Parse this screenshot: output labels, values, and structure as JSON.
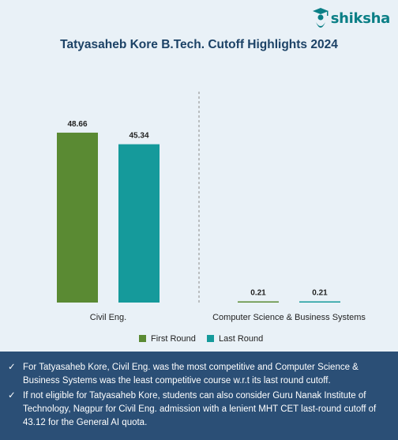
{
  "brand": {
    "name": "shiksha",
    "accent": "#0b7f86"
  },
  "chart_data": {
    "type": "bar",
    "title": "Tatyasaheb Kore B.Tech. Cutoff Highlights 2024",
    "categories": [
      "Civil Eng.",
      "Computer Science & Business Systems"
    ],
    "series": [
      {
        "name": "First Round",
        "color": "#5a8a33",
        "values": [
          48.66,
          0.21
        ],
        "labels": [
          "48.66",
          "0.21"
        ]
      },
      {
        "name": "Last Round",
        "color": "#159a9b",
        "values": [
          45.34,
          0.21
        ],
        "labels": [
          "45.34",
          "0.21"
        ]
      }
    ],
    "ylim": [
      0,
      50
    ],
    "legend": "bottom-center",
    "grid": false
  },
  "notes": [
    "For Tatyasaheb Kore, Civil Eng. was the most competitive and Computer Science & Business Systems was the least competitive course w.r.t its last round cutoff.",
    "If not eligible for Tatyasaheb Kore, students can also consider Guru Nanak Institute of Technology, Nagpur for Civil Eng. admission with a lenient MHT CET last-round cutoff of 43.12 for the General AI quota."
  ]
}
